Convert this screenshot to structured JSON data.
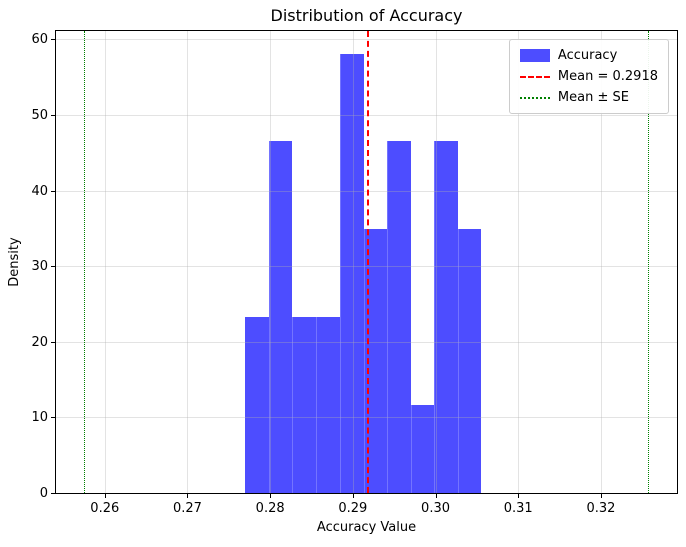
{
  "chart_data": {
    "type": "bar",
    "subtype": "histogram",
    "title": "Distribution of Accuracy",
    "xlabel": "Accuracy Value",
    "ylabel": "Density",
    "bin_edges": [
      0.2769,
      0.2798,
      0.2827,
      0.2856,
      0.2884,
      0.2913,
      0.2941,
      0.297,
      0.2998,
      0.3027,
      0.3055
    ],
    "densities": [
      23.3,
      46.5,
      23.3,
      23.3,
      58.1,
      34.9,
      46.5,
      11.6,
      46.5,
      34.9
    ],
    "mean": 0.2918,
    "xlim": [
      0.2541,
      0.3292
    ],
    "ylim": [
      0,
      61.1
    ],
    "x_ticks": [
      0.26,
      0.27,
      0.28,
      0.29,
      0.3,
      0.31,
      0.32
    ],
    "x_tick_labels": [
      "0.26",
      "0.27",
      "0.28",
      "0.29",
      "0.30",
      "0.31",
      "0.32"
    ],
    "y_ticks": [
      0,
      10,
      20,
      30,
      40,
      50,
      60
    ],
    "y_tick_labels": [
      "0",
      "10",
      "20",
      "30",
      "40",
      "50",
      "60"
    ],
    "grid": true,
    "legend_position": "upper right",
    "legend": [
      {
        "label": "Accuracy",
        "swatch": "patch",
        "color": "#4d4dff"
      },
      {
        "label": "Mean = 0.2918",
        "swatch": "dashed-line",
        "color": "#ff0000"
      },
      {
        "label": "Mean ± SE",
        "swatch": "dotted-line",
        "color": "#008000"
      }
    ],
    "vlines": [
      {
        "name": "mean-line",
        "value": 0.2918,
        "style": "dashed",
        "color": "#ff0000",
        "width": 2
      },
      {
        "name": "mean-minus-se-line",
        "value": 0.2576,
        "style": "dotted",
        "color": "#008000",
        "width": 1.5
      },
      {
        "name": "mean-plus-se-line",
        "value": 0.3258,
        "style": "dotted",
        "color": "#008000",
        "width": 1.5
      }
    ],
    "colors": {
      "bar_fill": "#4d4dff",
      "mean_line": "#ff0000",
      "se_line": "#008000",
      "grid": "#b0b0b0",
      "spine": "#000000",
      "text": "#000000",
      "background": "#ffffff"
    }
  }
}
